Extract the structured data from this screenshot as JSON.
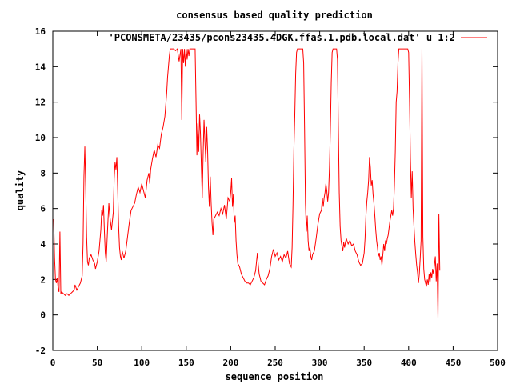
{
  "chart_data": {
    "type": "line",
    "title": "consensus based quality prediction",
    "xlabel": "sequence position",
    "ylabel": "quality",
    "xlim": [
      0,
      500
    ],
    "ylim": [
      -2,
      16
    ],
    "xticks": [
      0,
      50,
      100,
      150,
      200,
      250,
      300,
      350,
      400,
      450,
      500
    ],
    "yticks": [
      -2,
      0,
      2,
      4,
      6,
      8,
      10,
      12,
      14,
      16
    ],
    "grid": false,
    "legend_position": "top-right",
    "series": [
      {
        "name": "'PCONSMETA/23435/pcons23435.4DGK.ffas.1.pdb.local.dat' u 1:2",
        "color": "#ff0000",
        "points": [
          [
            1,
            5.4
          ],
          [
            2,
            3.2
          ],
          [
            3,
            2.0
          ],
          [
            4,
            1.8
          ],
          [
            5,
            2.1
          ],
          [
            6,
            1.5
          ],
          [
            7,
            1.3
          ],
          [
            8,
            4.7
          ],
          [
            9,
            1.2
          ],
          [
            10,
            1.3
          ],
          [
            12,
            1.2
          ],
          [
            14,
            1.1
          ],
          [
            16,
            1.2
          ],
          [
            18,
            1.1
          ],
          [
            20,
            1.2
          ],
          [
            22,
            1.3
          ],
          [
            24,
            1.4
          ],
          [
            25,
            1.7
          ],
          [
            27,
            1.4
          ],
          [
            29,
            1.6
          ],
          [
            31,
            1.8
          ],
          [
            33,
            2.2
          ],
          [
            34,
            4.0
          ],
          [
            35,
            7.8
          ],
          [
            36,
            9.5
          ],
          [
            37,
            7.2
          ],
          [
            38,
            4.4
          ],
          [
            39,
            3.0
          ],
          [
            40,
            2.8
          ],
          [
            41,
            3.2
          ],
          [
            43,
            3.4
          ],
          [
            45,
            3.1
          ],
          [
            47,
            2.9
          ],
          [
            48,
            2.6
          ],
          [
            50,
            3.0
          ],
          [
            52,
            3.6
          ],
          [
            54,
            4.8
          ],
          [
            55,
            5.9
          ],
          [
            56,
            5.6
          ],
          [
            57,
            6.2
          ],
          [
            58,
            4.7
          ],
          [
            59,
            3.5
          ],
          [
            60,
            3.0
          ],
          [
            61,
            4.2
          ],
          [
            62,
            5.3
          ],
          [
            63,
            6.3
          ],
          [
            64,
            5.6
          ],
          [
            66,
            4.8
          ],
          [
            68,
            5.8
          ],
          [
            69,
            7.7
          ],
          [
            70,
            8.6
          ],
          [
            71,
            8.2
          ],
          [
            72,
            8.9
          ],
          [
            73,
            7.0
          ],
          [
            74,
            5.0
          ],
          [
            75,
            3.8
          ],
          [
            76,
            3.3
          ],
          [
            77,
            3.1
          ],
          [
            78,
            3.6
          ],
          [
            80,
            3.2
          ],
          [
            82,
            3.6
          ],
          [
            84,
            4.4
          ],
          [
            86,
            5.2
          ],
          [
            88,
            5.9
          ],
          [
            90,
            6.1
          ],
          [
            92,
            6.3
          ],
          [
            94,
            6.8
          ],
          [
            96,
            7.2
          ],
          [
            98,
            6.9
          ],
          [
            100,
            7.4
          ],
          [
            102,
            7.0
          ],
          [
            104,
            6.6
          ],
          [
            106,
            7.6
          ],
          [
            108,
            8.0
          ],
          [
            109,
            7.4
          ],
          [
            110,
            8.2
          ],
          [
            112,
            8.8
          ],
          [
            114,
            9.3
          ],
          [
            116,
            8.9
          ],
          [
            118,
            9.6
          ],
          [
            120,
            9.4
          ],
          [
            122,
            10.2
          ],
          [
            124,
            10.6
          ],
          [
            126,
            11.2
          ],
          [
            128,
            12.5
          ],
          [
            129,
            13.4
          ],
          [
            130,
            14.0
          ],
          [
            131,
            14.6
          ],
          [
            132,
            15.0
          ],
          [
            134,
            15.0
          ],
          [
            136,
            15.0
          ],
          [
            138,
            14.9
          ],
          [
            140,
            15.0
          ],
          [
            142,
            14.3
          ],
          [
            144,
            15.0
          ],
          [
            145,
            11.0
          ],
          [
            146,
            15.0
          ],
          [
            147,
            14.2
          ],
          [
            148,
            15.0
          ],
          [
            149,
            14.0
          ],
          [
            150,
            15.0
          ],
          [
            151,
            14.4
          ],
          [
            152,
            15.0
          ],
          [
            153,
            14.6
          ],
          [
            154,
            15.0
          ],
          [
            156,
            15.0
          ],
          [
            158,
            15.0
          ],
          [
            160,
            15.0
          ],
          [
            161,
            12.1
          ],
          [
            162,
            9.0
          ],
          [
            163,
            10.8
          ],
          [
            164,
            9.2
          ],
          [
            165,
            11.3
          ],
          [
            166,
            10.2
          ],
          [
            167,
            8.4
          ],
          [
            168,
            6.6
          ],
          [
            169,
            9.1
          ],
          [
            170,
            11.0
          ],
          [
            171,
            9.8
          ],
          [
            172,
            8.6
          ],
          [
            173,
            10.6
          ],
          [
            174,
            9.3
          ],
          [
            175,
            7.2
          ],
          [
            176,
            6.1
          ],
          [
            177,
            7.8
          ],
          [
            178,
            6.3
          ],
          [
            179,
            5.2
          ],
          [
            180,
            4.5
          ],
          [
            181,
            5.4
          ],
          [
            183,
            5.6
          ],
          [
            185,
            5.8
          ],
          [
            187,
            5.6
          ],
          [
            189,
            6.0
          ],
          [
            191,
            5.7
          ],
          [
            193,
            6.2
          ],
          [
            195,
            5.4
          ],
          [
            197,
            6.6
          ],
          [
            199,
            6.4
          ],
          [
            200,
            6.9
          ],
          [
            201,
            7.7
          ],
          [
            202,
            6.1
          ],
          [
            203,
            6.8
          ],
          [
            204,
            5.2
          ],
          [
            205,
            5.6
          ],
          [
            206,
            4.2
          ],
          [
            207,
            3.4
          ],
          [
            208,
            2.9
          ],
          [
            210,
            2.7
          ],
          [
            212,
            2.3
          ],
          [
            214,
            2.1
          ],
          [
            216,
            1.9
          ],
          [
            218,
            1.8
          ],
          [
            220,
            1.8
          ],
          [
            222,
            1.7
          ],
          [
            224,
            1.9
          ],
          [
            226,
            2.1
          ],
          [
            228,
            2.5
          ],
          [
            229,
            3.0
          ],
          [
            230,
            3.5
          ],
          [
            231,
            2.8
          ],
          [
            232,
            2.3
          ],
          [
            234,
            1.9
          ],
          [
            236,
            1.8
          ],
          [
            238,
            1.7
          ],
          [
            240,
            2.0
          ],
          [
            242,
            2.2
          ],
          [
            244,
            2.6
          ],
          [
            246,
            3.3
          ],
          [
            248,
            3.7
          ],
          [
            250,
            3.3
          ],
          [
            252,
            3.5
          ],
          [
            254,
            3.1
          ],
          [
            256,
            3.3
          ],
          [
            258,
            3.0
          ],
          [
            260,
            3.4
          ],
          [
            262,
            3.2
          ],
          [
            264,
            3.6
          ],
          [
            266,
            2.9
          ],
          [
            268,
            2.7
          ],
          [
            269,
            3.8
          ],
          [
            270,
            6.2
          ],
          [
            271,
            9.3
          ],
          [
            272,
            11.2
          ],
          [
            273,
            13.6
          ],
          [
            274,
            14.8
          ],
          [
            275,
            15.0
          ],
          [
            277,
            15.0
          ],
          [
            279,
            15.0
          ],
          [
            281,
            15.0
          ],
          [
            282,
            14.2
          ],
          [
            283,
            10.5
          ],
          [
            284,
            6.3
          ],
          [
            285,
            4.7
          ],
          [
            286,
            5.6
          ],
          [
            287,
            4.2
          ],
          [
            288,
            3.6
          ],
          [
            289,
            3.8
          ],
          [
            290,
            3.3
          ],
          [
            291,
            3.1
          ],
          [
            292,
            3.4
          ],
          [
            294,
            3.6
          ],
          [
            296,
            4.3
          ],
          [
            298,
            5.1
          ],
          [
            300,
            5.7
          ],
          [
            302,
            5.9
          ],
          [
            303,
            6.6
          ],
          [
            304,
            6.1
          ],
          [
            305,
            6.6
          ],
          [
            306,
            6.9
          ],
          [
            307,
            7.4
          ],
          [
            308,
            7.0
          ],
          [
            309,
            6.4
          ],
          [
            310,
            6.9
          ],
          [
            311,
            8.3
          ],
          [
            312,
            10.4
          ],
          [
            313,
            13.1
          ],
          [
            314,
            14.8
          ],
          [
            315,
            15.0
          ],
          [
            317,
            15.0
          ],
          [
            319,
            15.0
          ],
          [
            320,
            14.4
          ],
          [
            321,
            10.6
          ],
          [
            322,
            6.9
          ],
          [
            323,
            5.0
          ],
          [
            324,
            4.2
          ],
          [
            325,
            3.9
          ],
          [
            326,
            3.6
          ],
          [
            327,
            4.1
          ],
          [
            328,
            3.8
          ],
          [
            329,
            4.1
          ],
          [
            330,
            4.3
          ],
          [
            332,
            4.0
          ],
          [
            334,
            4.2
          ],
          [
            336,
            3.9
          ],
          [
            338,
            4.0
          ],
          [
            340,
            3.6
          ],
          [
            342,
            3.4
          ],
          [
            344,
            3.0
          ],
          [
            346,
            2.8
          ],
          [
            348,
            2.9
          ],
          [
            350,
            3.5
          ],
          [
            351,
            4.3
          ],
          [
            352,
            5.6
          ],
          [
            353,
            6.4
          ],
          [
            354,
            6.9
          ],
          [
            355,
            7.6
          ],
          [
            356,
            8.9
          ],
          [
            357,
            8.3
          ],
          [
            358,
            7.3
          ],
          [
            359,
            7.6
          ],
          [
            360,
            6.8
          ],
          [
            361,
            6.3
          ],
          [
            362,
            5.6
          ],
          [
            363,
            4.8
          ],
          [
            364,
            4.2
          ],
          [
            365,
            3.8
          ],
          [
            366,
            3.3
          ],
          [
            367,
            3.5
          ],
          [
            368,
            3.1
          ],
          [
            369,
            3.3
          ],
          [
            370,
            2.8
          ],
          [
            371,
            3.4
          ],
          [
            372,
            4.0
          ],
          [
            373,
            3.6
          ],
          [
            374,
            4.2
          ],
          [
            375,
            4.0
          ],
          [
            376,
            4.3
          ],
          [
            377,
            4.5
          ],
          [
            378,
            4.9
          ],
          [
            379,
            5.3
          ],
          [
            380,
            5.6
          ],
          [
            381,
            5.9
          ],
          [
            382,
            5.6
          ],
          [
            383,
            6.0
          ],
          [
            384,
            7.3
          ],
          [
            385,
            9.2
          ],
          [
            386,
            12.0
          ],
          [
            387,
            12.6
          ],
          [
            388,
            14.2
          ],
          [
            389,
            15.0
          ],
          [
            391,
            15.0
          ],
          [
            393,
            15.0
          ],
          [
            395,
            15.0
          ],
          [
            397,
            15.0
          ],
          [
            399,
            15.0
          ],
          [
            400,
            14.8
          ],
          [
            401,
            12.1
          ],
          [
            402,
            8.8
          ],
          [
            403,
            6.6
          ],
          [
            404,
            8.1
          ],
          [
            405,
            6.0
          ],
          [
            406,
            5.0
          ],
          [
            407,
            4.1
          ],
          [
            408,
            3.4
          ],
          [
            409,
            2.8
          ],
          [
            410,
            2.4
          ],
          [
            411,
            1.8
          ],
          [
            412,
            2.3
          ],
          [
            413,
            3.2
          ],
          [
            414,
            4.2
          ],
          [
            415,
            15.0
          ],
          [
            416,
            4.4
          ],
          [
            417,
            2.6
          ],
          [
            418,
            2.0
          ],
          [
            419,
            1.8
          ],
          [
            420,
            1.6
          ],
          [
            421,
            2.0
          ],
          [
            422,
            1.7
          ],
          [
            423,
            2.3
          ],
          [
            424,
            1.8
          ],
          [
            425,
            2.4
          ],
          [
            426,
            2.1
          ],
          [
            427,
            2.6
          ],
          [
            428,
            2.3
          ],
          [
            429,
            2.8
          ],
          [
            430,
            3.3
          ],
          [
            431,
            1.9
          ],
          [
            432,
            2.9
          ],
          [
            433,
            -0.2
          ],
          [
            434,
            5.7
          ],
          [
            435,
            2.5
          ]
        ]
      }
    ]
  }
}
